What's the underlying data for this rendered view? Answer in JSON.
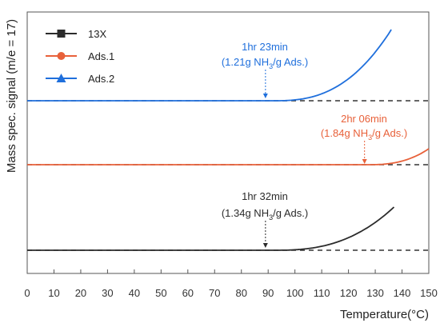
{
  "chart_data": {
    "type": "line",
    "xlabel": "Temperature(°C)",
    "ylabel": "Mass spec. signal (m/e = 17)",
    "xlim": [
      0,
      150
    ],
    "xticks": [
      0,
      10,
      20,
      30,
      40,
      50,
      60,
      70,
      80,
      90,
      100,
      110,
      120,
      130,
      140,
      150
    ],
    "xtick_labels": [
      "0",
      "10",
      "20",
      "30",
      "40",
      "50",
      "60",
      "70",
      "80",
      "90",
      "100",
      "110",
      "120",
      "130",
      "140",
      "150"
    ],
    "yticks_shown": false,
    "legend": {
      "position": "top-left",
      "frame": false
    },
    "series": [
      {
        "name": "13X",
        "color": "#2b2b2b",
        "marker": "square",
        "baseline_offset": 0,
        "onset_x": 92,
        "end_x": 137,
        "rise": 54,
        "annotation": {
          "line1": "1hr 32min",
          "line2_pre": "(1.34g NH",
          "sub": "3",
          "line2_post": "/g Ads.)",
          "arrow_x": 89,
          "color": "#2b2b2b"
        }
      },
      {
        "name": "Ads.1",
        "color": "#e8613a",
        "marker": "circle",
        "baseline_offset": 1,
        "onset_x": 127,
        "end_x": 150,
        "rise": 20,
        "annotation": {
          "line1": "2hr 06min",
          "line2_pre": "(1.84g NH",
          "sub": "3",
          "line2_post": "/g Ads.)",
          "arrow_x": 126,
          "color": "#e8613a"
        }
      },
      {
        "name": "Ads.2",
        "color": "#1f6fdc",
        "marker": "triangle",
        "baseline_offset": 2,
        "onset_x": 92,
        "end_x": 136,
        "rise": 89,
        "annotation": {
          "line1": "1hr 23min",
          "line2_pre": "(1.21g NH",
          "sub": "3",
          "line2_post": "/g Ads.)",
          "arrow_x": 89,
          "color": "#1f6fdc"
        }
      }
    ]
  }
}
